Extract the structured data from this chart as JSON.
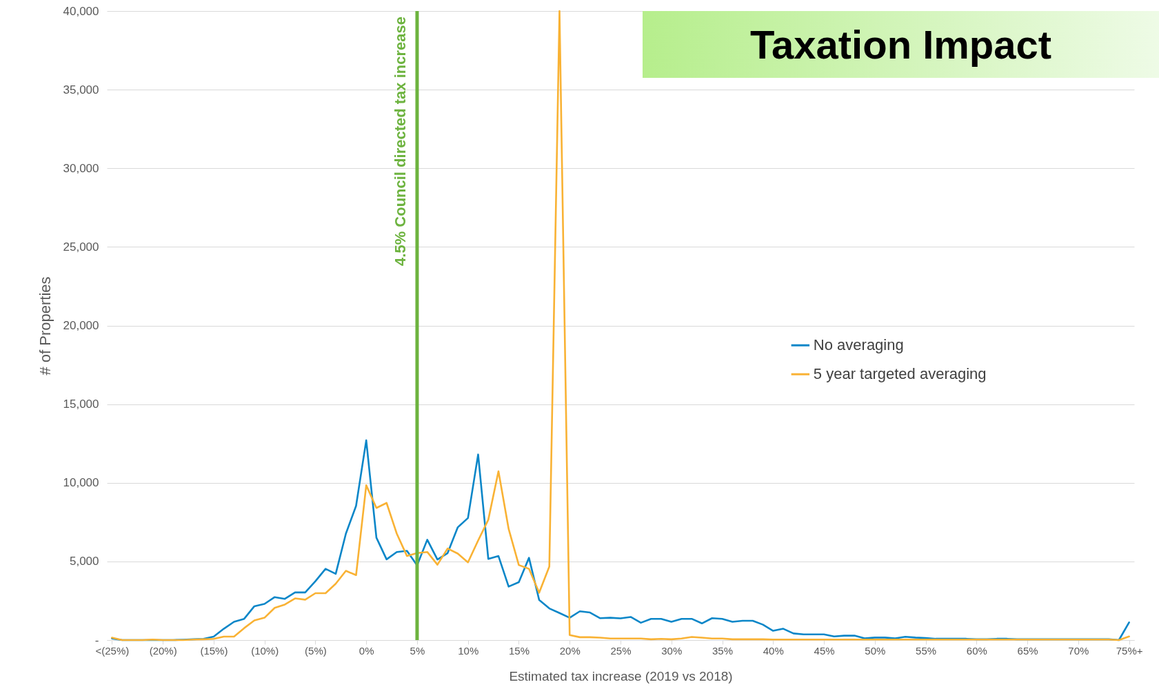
{
  "chart_data": {
    "type": "line",
    "title": "Taxation Impact",
    "xlabel": "Estimated tax increase (2019 vs 2018)",
    "ylabel": "# of Properties",
    "categories": [
      "<(25%)",
      null,
      null,
      null,
      null,
      "(20%)",
      null,
      null,
      null,
      null,
      "(15%)",
      null,
      null,
      null,
      null,
      "(10%)",
      null,
      null,
      null,
      null,
      "(5%)",
      null,
      null,
      null,
      null,
      "0%",
      null,
      null,
      null,
      null,
      "5%",
      null,
      null,
      null,
      null,
      "10%",
      null,
      null,
      null,
      null,
      "15%",
      null,
      null,
      null,
      null,
      "20%",
      null,
      null,
      null,
      null,
      "25%",
      null,
      null,
      null,
      null,
      "30%",
      null,
      null,
      null,
      null,
      "35%",
      null,
      null,
      null,
      null,
      "40%",
      null,
      null,
      null,
      null,
      "45%",
      null,
      null,
      null,
      null,
      "50%",
      null,
      null,
      null,
      null,
      "55%",
      null,
      null,
      null,
      null,
      "60%",
      null,
      null,
      null,
      null,
      "65%",
      null,
      null,
      null,
      null,
      "70%",
      null,
      null,
      null,
      null,
      "75%+"
    ],
    "series": [
      {
        "name": "No averaging",
        "color": "#0a86c8",
        "values": [
          100,
          0,
          0,
          0,
          0,
          0,
          0,
          20,
          50,
          80,
          220,
          720,
          1160,
          1350,
          2150,
          2300,
          2730,
          2620,
          3030,
          3030,
          3740,
          4530,
          4210,
          6770,
          8530,
          12700,
          6510,
          5130,
          5600,
          5670,
          4750,
          6380,
          5120,
          5530,
          7170,
          7760,
          11800,
          5160,
          5340,
          3400,
          3680,
          5230,
          2550,
          2010,
          1720,
          1420,
          1830,
          1750,
          1390,
          1420,
          1380,
          1470,
          1100,
          1350,
          1350,
          1160,
          1350,
          1350,
          1060,
          1390,
          1350,
          1160,
          1230,
          1230,
          980,
          590,
          720,
          420,
          360,
          360,
          360,
          230,
          280,
          280,
          110,
          160,
          160,
          110,
          210,
          160,
          130,
          80,
          80,
          80,
          80,
          50,
          50,
          80,
          80,
          50,
          50,
          50,
          50,
          50,
          50,
          50,
          50,
          50,
          50,
          0,
          1120
        ]
      },
      {
        "name": "5 year targeted averaging",
        "color": "#f9b234",
        "values": [
          150,
          0,
          0,
          0,
          30,
          0,
          0,
          0,
          30,
          50,
          80,
          220,
          220,
          760,
          1250,
          1420,
          2050,
          2260,
          2650,
          2570,
          2980,
          2980,
          3580,
          4400,
          4130,
          9840,
          8400,
          8720,
          6770,
          5350,
          5530,
          5600,
          4790,
          5820,
          5500,
          4940,
          6330,
          7650,
          10730,
          7070,
          4770,
          4530,
          3010,
          4680,
          40000,
          320,
          180,
          180,
          150,
          100,
          100,
          100,
          100,
          50,
          80,
          50,
          100,
          200,
          150,
          100,
          100,
          50,
          50,
          50,
          50,
          30,
          30,
          30,
          30,
          30,
          30,
          30,
          30,
          30,
          30,
          30,
          30,
          30,
          30,
          30,
          30,
          30,
          30,
          30,
          30,
          30,
          30,
          30,
          30,
          30,
          30,
          30,
          30,
          30,
          30,
          30,
          30,
          30,
          30,
          0,
          230
        ]
      }
    ],
    "ylim": [
      0,
      40000
    ],
    "yticks": [
      {
        "value": 0,
        "label": "-"
      },
      {
        "value": 5000,
        "label": "5,000"
      },
      {
        "value": 10000,
        "label": "10,000"
      },
      {
        "value": 15000,
        "label": "15,000"
      },
      {
        "value": 20000,
        "label": "20,000"
      },
      {
        "value": 25000,
        "label": "25,000"
      },
      {
        "value": 30000,
        "label": "30,000"
      },
      {
        "value": 35000,
        "label": "35,000"
      },
      {
        "value": 40000,
        "label": "40,000"
      }
    ],
    "ref_lines": [
      {
        "axis": "x",
        "value": "5%",
        "label": "4.5%  Council directed tax increase",
        "color": "#6db33f"
      }
    ],
    "grid": "y",
    "legend": "right"
  }
}
